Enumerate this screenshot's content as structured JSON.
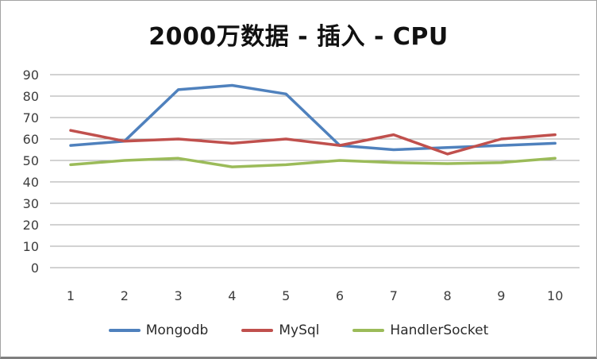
{
  "window": {
    "background": "#ffffff",
    "border_color": "#a3a3a3",
    "bottom_edge_color": "#7f7f7f"
  },
  "chart_data": {
    "type": "line",
    "title": "2000万数据 - 插入 - CPU",
    "xlabel": "",
    "ylabel": "",
    "categories": [
      1,
      2,
      3,
      4,
      5,
      6,
      7,
      8,
      9,
      10
    ],
    "y_ticks": [
      0,
      10,
      20,
      30,
      40,
      50,
      60,
      70,
      80,
      90
    ],
    "ylim": [
      0,
      90
    ],
    "grid": true,
    "legend_position": "bottom",
    "gridline_color": "#A6A6A6",
    "axis_text_color": "#3d3d3d",
    "series": [
      {
        "name": "Mongodb",
        "color": "#4F81BD",
        "values": [
          57,
          59,
          83,
          85,
          81,
          57,
          55,
          56,
          57,
          58
        ]
      },
      {
        "name": "MySql",
        "color": "#C0504D",
        "values": [
          64,
          59,
          60,
          58,
          60,
          57,
          62,
          53,
          60,
          62
        ]
      },
      {
        "name": "HandlerSocket",
        "color": "#9BBB59",
        "values": [
          48,
          50,
          51,
          47,
          48,
          50,
          49,
          48.5,
          49,
          51
        ]
      }
    ]
  }
}
